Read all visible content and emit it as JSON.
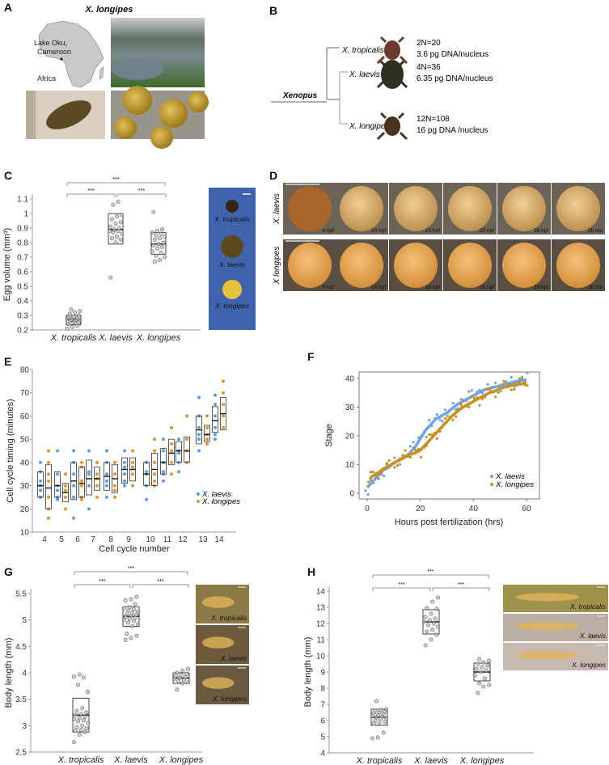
{
  "panels": {
    "A": {
      "label": "A",
      "title": "X. longipes",
      "map_lake": "Lake Oku,",
      "map_country": "Cameroon",
      "map_continent": "Africa"
    },
    "B": {
      "label": "B",
      "root": "Xenopus",
      "species": [
        {
          "name": "X. tropicalis",
          "ploidy": "2N=20",
          "dna": "3.6 pg DNA/nucleus",
          "frog_color": "#6b3a2c"
        },
        {
          "name": "X. laevis",
          "ploidy": "4N=36",
          "dna": "6.35 pg DNA/nucleus",
          "frog_color": "#2f2f22"
        },
        {
          "name": "X. longipes",
          "ploidy": "12N=108",
          "dna": "16 pg DNA /nucleus",
          "frog_color": "#4a3420"
        }
      ]
    },
    "C": {
      "label": "C",
      "image_labels": [
        "X. tropicalis",
        "X. laevis",
        "X. longipes"
      ],
      "image_bg": "#3f63ad"
    },
    "D": {
      "label": "D",
      "rows": [
        "X. laevis",
        "X longipes"
      ],
      "times": [
        "4 hpf",
        "16 hpf",
        "19 hpf",
        "25 hpf",
        "28 hpf",
        "28 hpf"
      ]
    },
    "E": {
      "label": "E"
    },
    "F": {
      "label": "F"
    },
    "G": {
      "label": "G",
      "image_labels": [
        "X. tropicalis",
        "X. laevis",
        "X. longipes"
      ]
    },
    "H": {
      "label": "H",
      "image_labels": [
        "X. tropicalis",
        "X. laevis",
        "X. longipes"
      ]
    }
  },
  "chart_data": [
    {
      "panel": "C",
      "type": "box-strip",
      "ylabel": "Egg volume (mm³)",
      "ylim": [
        0.2,
        1.1
      ],
      "yticks": [
        "0.2",
        "0.3",
        "0.4",
        "0.5",
        "0.6",
        "0.7",
        "0.8",
        "0.9",
        "1",
        "1.1"
      ],
      "categories": [
        "X. tropicalis",
        "X. laevis",
        "X. longipes"
      ],
      "boxes": [
        {
          "q1": 0.235,
          "median": 0.27,
          "q3": 0.3
        },
        {
          "q1": 0.79,
          "median": 0.89,
          "q3": 1.0
        },
        {
          "q1": 0.72,
          "median": 0.79,
          "q3": 0.87
        }
      ],
      "points": [
        [
          0.21,
          0.22,
          0.23,
          0.24,
          0.25,
          0.25,
          0.26,
          0.26,
          0.27,
          0.27,
          0.27,
          0.28,
          0.28,
          0.28,
          0.29,
          0.29,
          0.3,
          0.31,
          0.32,
          0.33,
          0.34
        ],
        [
          0.56,
          0.8,
          0.82,
          0.83,
          0.84,
          0.86,
          0.87,
          0.88,
          0.88,
          0.89,
          0.9,
          0.91,
          0.93,
          0.94,
          0.96,
          0.98,
          0.99,
          1.06,
          1.08
        ],
        [
          0.67,
          0.68,
          0.7,
          0.71,
          0.73,
          0.74,
          0.76,
          0.77,
          0.78,
          0.79,
          0.8,
          0.82,
          0.83,
          0.84,
          0.85,
          0.86,
          0.87,
          0.88,
          0.89,
          1.01
        ]
      ],
      "significance": [
        {
          "pair": [
            0,
            2
          ],
          "label": "***"
        },
        {
          "pair": [
            0,
            1
          ],
          "label": "***"
        },
        {
          "pair": [
            1,
            2
          ],
          "label": "***"
        }
      ]
    },
    {
      "panel": "E",
      "type": "box-strip",
      "xlabel": "Cell cycle number",
      "ylabel": "Cell cycle timing (minutes)",
      "ylim": [
        10,
        80
      ],
      "yticks": [
        "10",
        "20",
        "30",
        "40",
        "50",
        "60",
        "70",
        "80"
      ],
      "categories": [
        "4",
        "5",
        "6",
        "7",
        "8",
        "9",
        "10",
        "11",
        "12",
        "13",
        "14"
      ],
      "legend_position": "bottom-right",
      "series": [
        {
          "name": "X. laevis",
          "color": "#5b9be0",
          "boxes": [
            [
              25,
              30,
              36
            ],
            [
              25,
              30,
              36
            ],
            [
              24,
              32,
              40
            ],
            [
              26,
              33,
              41
            ],
            [
              28,
              34,
              40
            ],
            [
              31,
              37,
              42
            ],
            [
              30,
              35,
              40
            ],
            [
              35,
              40,
              46
            ],
            [
              40,
              45,
              49
            ],
            [
              48,
              54,
              60
            ],
            [
              53,
              58,
              64
            ]
          ],
          "points": [
            [
              25,
              28,
              30,
              32,
              36,
              40
            ],
            [
              24,
              25,
              28,
              30,
              35,
              45
            ],
            [
              16,
              25,
              30,
              35,
              40,
              45
            ],
            [
              20,
              30,
              35,
              36,
              45
            ],
            [
              25,
              30,
              32,
              35,
              40,
              45
            ],
            [
              30,
              32,
              35,
              38,
              40,
              45
            ],
            [
              24,
              30,
              35,
              36,
              40
            ],
            [
              32,
              35,
              36,
              40,
              45,
              50
            ],
            [
              36,
              40,
              44,
              45,
              50
            ],
            [
              45,
              50,
              52,
              55,
              60,
              68
            ],
            [
              50,
              52,
              55,
              60,
              65,
              69
            ]
          ]
        },
        {
          "name": "X. longipes",
          "color": "#e0922b",
          "boxes": [
            [
              20,
              29,
              39
            ],
            [
              23,
              27,
              31
            ],
            [
              25,
              31,
              38
            ],
            [
              28,
              33,
              38
            ],
            [
              27,
              33,
              39
            ],
            [
              32,
              37,
              42
            ],
            [
              30,
              37,
              44
            ],
            [
              39,
              44,
              50
            ],
            [
              40,
              45,
              51
            ],
            [
              49,
              52,
              56
            ],
            [
              54,
              61,
              68
            ]
          ],
          "points": [
            [
              16,
              20,
              25,
              32,
              35,
              40,
              45
            ],
            [
              20,
              25,
              28,
              30,
              35
            ],
            [
              24,
              25,
              30,
              32,
              38,
              40
            ],
            [
              25,
              30,
              33,
              35,
              40
            ],
            [
              25,
              28,
              30,
              35,
              40
            ],
            [
              30,
              35,
              38,
              40,
              45
            ],
            [
              30,
              32,
              35,
              40,
              45,
              50
            ],
            [
              35,
              40,
              45,
              48,
              55
            ],
            [
              40,
              45,
              50,
              60
            ],
            [
              48,
              50,
              52,
              55,
              60
            ],
            [
              55,
              60,
              65,
              70,
              75
            ]
          ]
        }
      ]
    },
    {
      "panel": "F",
      "type": "scatter-line",
      "xlabel": "Hours post fertilization (hrs)",
      "ylabel": "Stage",
      "xlim": [
        0,
        60
      ],
      "ylim": [
        0,
        40
      ],
      "xticks": [
        "0",
        "20",
        "40",
        "60"
      ],
      "yticks": [
        "0",
        "10",
        "20",
        "30",
        "40"
      ],
      "legend_position": "bottom-right",
      "series": [
        {
          "name": "X. laevis",
          "color": "#6fa3e3",
          "x": [
            0,
            2,
            4,
            6,
            8,
            10,
            12,
            14,
            16,
            18,
            20,
            22,
            24,
            26,
            28,
            30,
            32,
            34,
            36,
            38,
            40,
            42,
            44,
            46,
            48,
            50,
            52,
            54,
            56,
            58,
            60
          ],
          "y": [
            2,
            4,
            6,
            8,
            9,
            10.5,
            11.5,
            12.5,
            14,
            16,
            19,
            22,
            24,
            26,
            27,
            28,
            29.5,
            31,
            32,
            33,
            34,
            35,
            36,
            36.5,
            37,
            37.5,
            38,
            38.5,
            39,
            39.3,
            39.5
          ]
        },
        {
          "name": "X. longipes",
          "color": "#c8901c",
          "x": [
            1,
            2,
            4,
            6,
            8,
            10,
            12,
            14,
            16,
            18,
            20,
            22,
            24,
            26,
            28,
            30,
            32,
            34,
            36,
            38,
            40,
            42,
            44,
            46,
            48,
            50,
            52,
            54,
            56,
            58,
            60
          ],
          "y": [
            5,
            6,
            7,
            8.5,
            9.5,
            10.5,
            11.5,
            12.5,
            13.5,
            14,
            15,
            17,
            19,
            21,
            23,
            25,
            27,
            28.5,
            30,
            31,
            32,
            33,
            34,
            35,
            35.5,
            36.5,
            37,
            37.5,
            38,
            38,
            38.5
          ]
        }
      ]
    },
    {
      "panel": "G",
      "type": "box-strip",
      "ylabel": "Body length (mm)",
      "ylim": [
        2.5,
        5.5
      ],
      "yticks": [
        "2.5",
        "3",
        "3.5",
        "4",
        "4.5",
        "5",
        "5.5"
      ],
      "categories": [
        "X. tropicalis",
        "X. laevis",
        "X. longipes"
      ],
      "boxes": [
        {
          "q1": 2.88,
          "median": 3.2,
          "q3": 3.52
        },
        {
          "q1": 4.88,
          "median": 5.07,
          "q3": 5.25
        },
        {
          "q1": 3.8,
          "median": 3.9,
          "q3": 4.0
        }
      ],
      "points": [
        [
          2.69,
          2.83,
          2.88,
          2.9,
          2.92,
          2.95,
          2.97,
          3.0,
          3.05,
          3.08,
          3.1,
          3.12,
          3.15,
          3.17,
          3.2,
          3.22,
          3.25,
          3.28,
          3.33,
          3.64,
          3.77,
          3.91,
          3.93,
          3.97
        ],
        [
          4.62,
          4.66,
          4.7,
          4.74,
          4.88,
          4.92,
          4.95,
          4.98,
          5.0,
          5.02,
          5.04,
          5.06,
          5.08,
          5.1,
          5.12,
          5.14,
          5.16,
          5.18,
          5.2,
          5.22,
          5.24,
          5.3,
          5.37,
          5.39,
          5.44
        ],
        [
          3.68,
          3.8,
          3.82,
          3.84,
          3.86,
          3.88,
          3.9,
          3.92,
          3.94,
          3.96,
          3.98,
          4.0,
          4.04,
          4.07
        ]
      ],
      "significance": [
        {
          "pair": [
            0,
            2
          ],
          "label": "***"
        },
        {
          "pair": [
            0,
            1
          ],
          "label": "***"
        },
        {
          "pair": [
            1,
            2
          ],
          "label": "***"
        }
      ]
    },
    {
      "panel": "H",
      "type": "box-strip",
      "ylabel": "Body length (mm)",
      "ylim": [
        4,
        14
      ],
      "yticks": [
        "4",
        "5",
        "6",
        "7",
        "8",
        "9",
        "10",
        "11",
        "12",
        "13",
        "14"
      ],
      "categories": [
        "X. tropicalis",
        "X. laevis",
        "X. longipes"
      ],
      "boxes": [
        {
          "q1": 5.7,
          "median": 6.2,
          "q3": 6.7
        },
        {
          "q1": 11.35,
          "median": 12.1,
          "q3": 12.85
        },
        {
          "q1": 8.45,
          "median": 9.0,
          "q3": 9.55
        }
      ],
      "points": [
        [
          4.9,
          4.95,
          5.25,
          5.8,
          5.85,
          5.9,
          6.0,
          6.1,
          6.15,
          6.2,
          6.25,
          6.3,
          6.35,
          6.4,
          6.45,
          6.5,
          6.55,
          6.6,
          6.65,
          6.7,
          7.2
        ],
        [
          10.65,
          11.0,
          11.3,
          11.5,
          11.6,
          11.8,
          11.9,
          12.0,
          12.1,
          12.2,
          12.3,
          12.4,
          12.6,
          12.9,
          12.95,
          13.35,
          13.6
        ],
        [
          7.7,
          8.1,
          8.2,
          8.3,
          8.6,
          8.8,
          9.0,
          9.1,
          9.2,
          9.3,
          9.4,
          9.5,
          9.6,
          9.7,
          9.8
        ]
      ],
      "significance": [
        {
          "pair": [
            0,
            2
          ],
          "label": "***"
        },
        {
          "pair": [
            0,
            1
          ],
          "label": "***"
        },
        {
          "pair": [
            1,
            2
          ],
          "label": "***"
        }
      ]
    }
  ]
}
